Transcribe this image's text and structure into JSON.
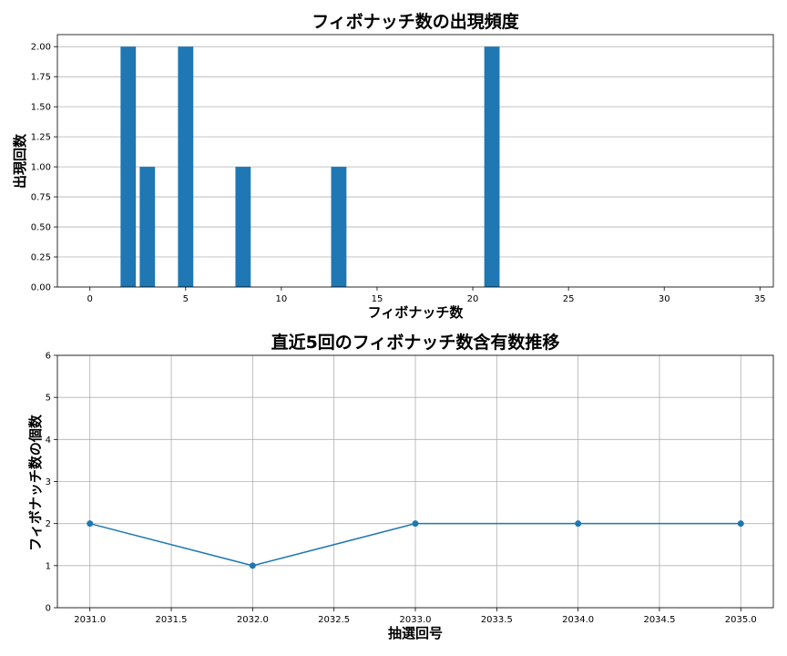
{
  "colors": {
    "series": "#1f77b4",
    "grid": "#b0b0b0"
  },
  "chart_data": [
    {
      "type": "bar",
      "title": "フィボナッチ数の出現頻度",
      "xlabel": "フィボナッチ数",
      "ylabel": "出現回数",
      "x": [
        2,
        3,
        5,
        8,
        13,
        21
      ],
      "values": [
        2,
        1,
        2,
        1,
        1,
        2
      ],
      "xlim": [
        -1.7,
        35.7
      ],
      "ylim": [
        0,
        2.1
      ],
      "xticks": [
        0,
        5,
        10,
        15,
        20,
        25,
        30,
        35
      ],
      "xtick_labels": [
        "0",
        "5",
        "10",
        "15",
        "20",
        "25",
        "30",
        "35"
      ],
      "yticks": [
        0,
        0.25,
        0.5,
        0.75,
        1.0,
        1.25,
        1.5,
        1.75,
        2.0
      ],
      "ytick_labels": [
        "0.00",
        "0.25",
        "0.50",
        "0.75",
        "1.00",
        "1.25",
        "1.50",
        "1.75",
        "2.00"
      ],
      "grid": "y"
    },
    {
      "type": "line",
      "title": "直近5回のフィボナッチ数含有数推移",
      "xlabel": "抽選回号",
      "ylabel": "フィボナッチ数の個数",
      "x": [
        2031,
        2032,
        2033,
        2034,
        2035
      ],
      "values": [
        2,
        1,
        2,
        2,
        2
      ],
      "xlim": [
        2030.8,
        2035.2
      ],
      "ylim": [
        0,
        6
      ],
      "xticks": [
        2031,
        2031.5,
        2032,
        2032.5,
        2033,
        2033.5,
        2034,
        2034.5,
        2035
      ],
      "xtick_labels": [
        "2031.0",
        "2031.5",
        "2032.0",
        "2032.5",
        "2033.0",
        "2033.5",
        "2034.0",
        "2034.5",
        "2035.0"
      ],
      "yticks": [
        0,
        1,
        2,
        3,
        4,
        5,
        6
      ],
      "ytick_labels": [
        "0",
        "1",
        "2",
        "3",
        "4",
        "5",
        "6"
      ],
      "grid": "both",
      "marker": "circle"
    }
  ]
}
